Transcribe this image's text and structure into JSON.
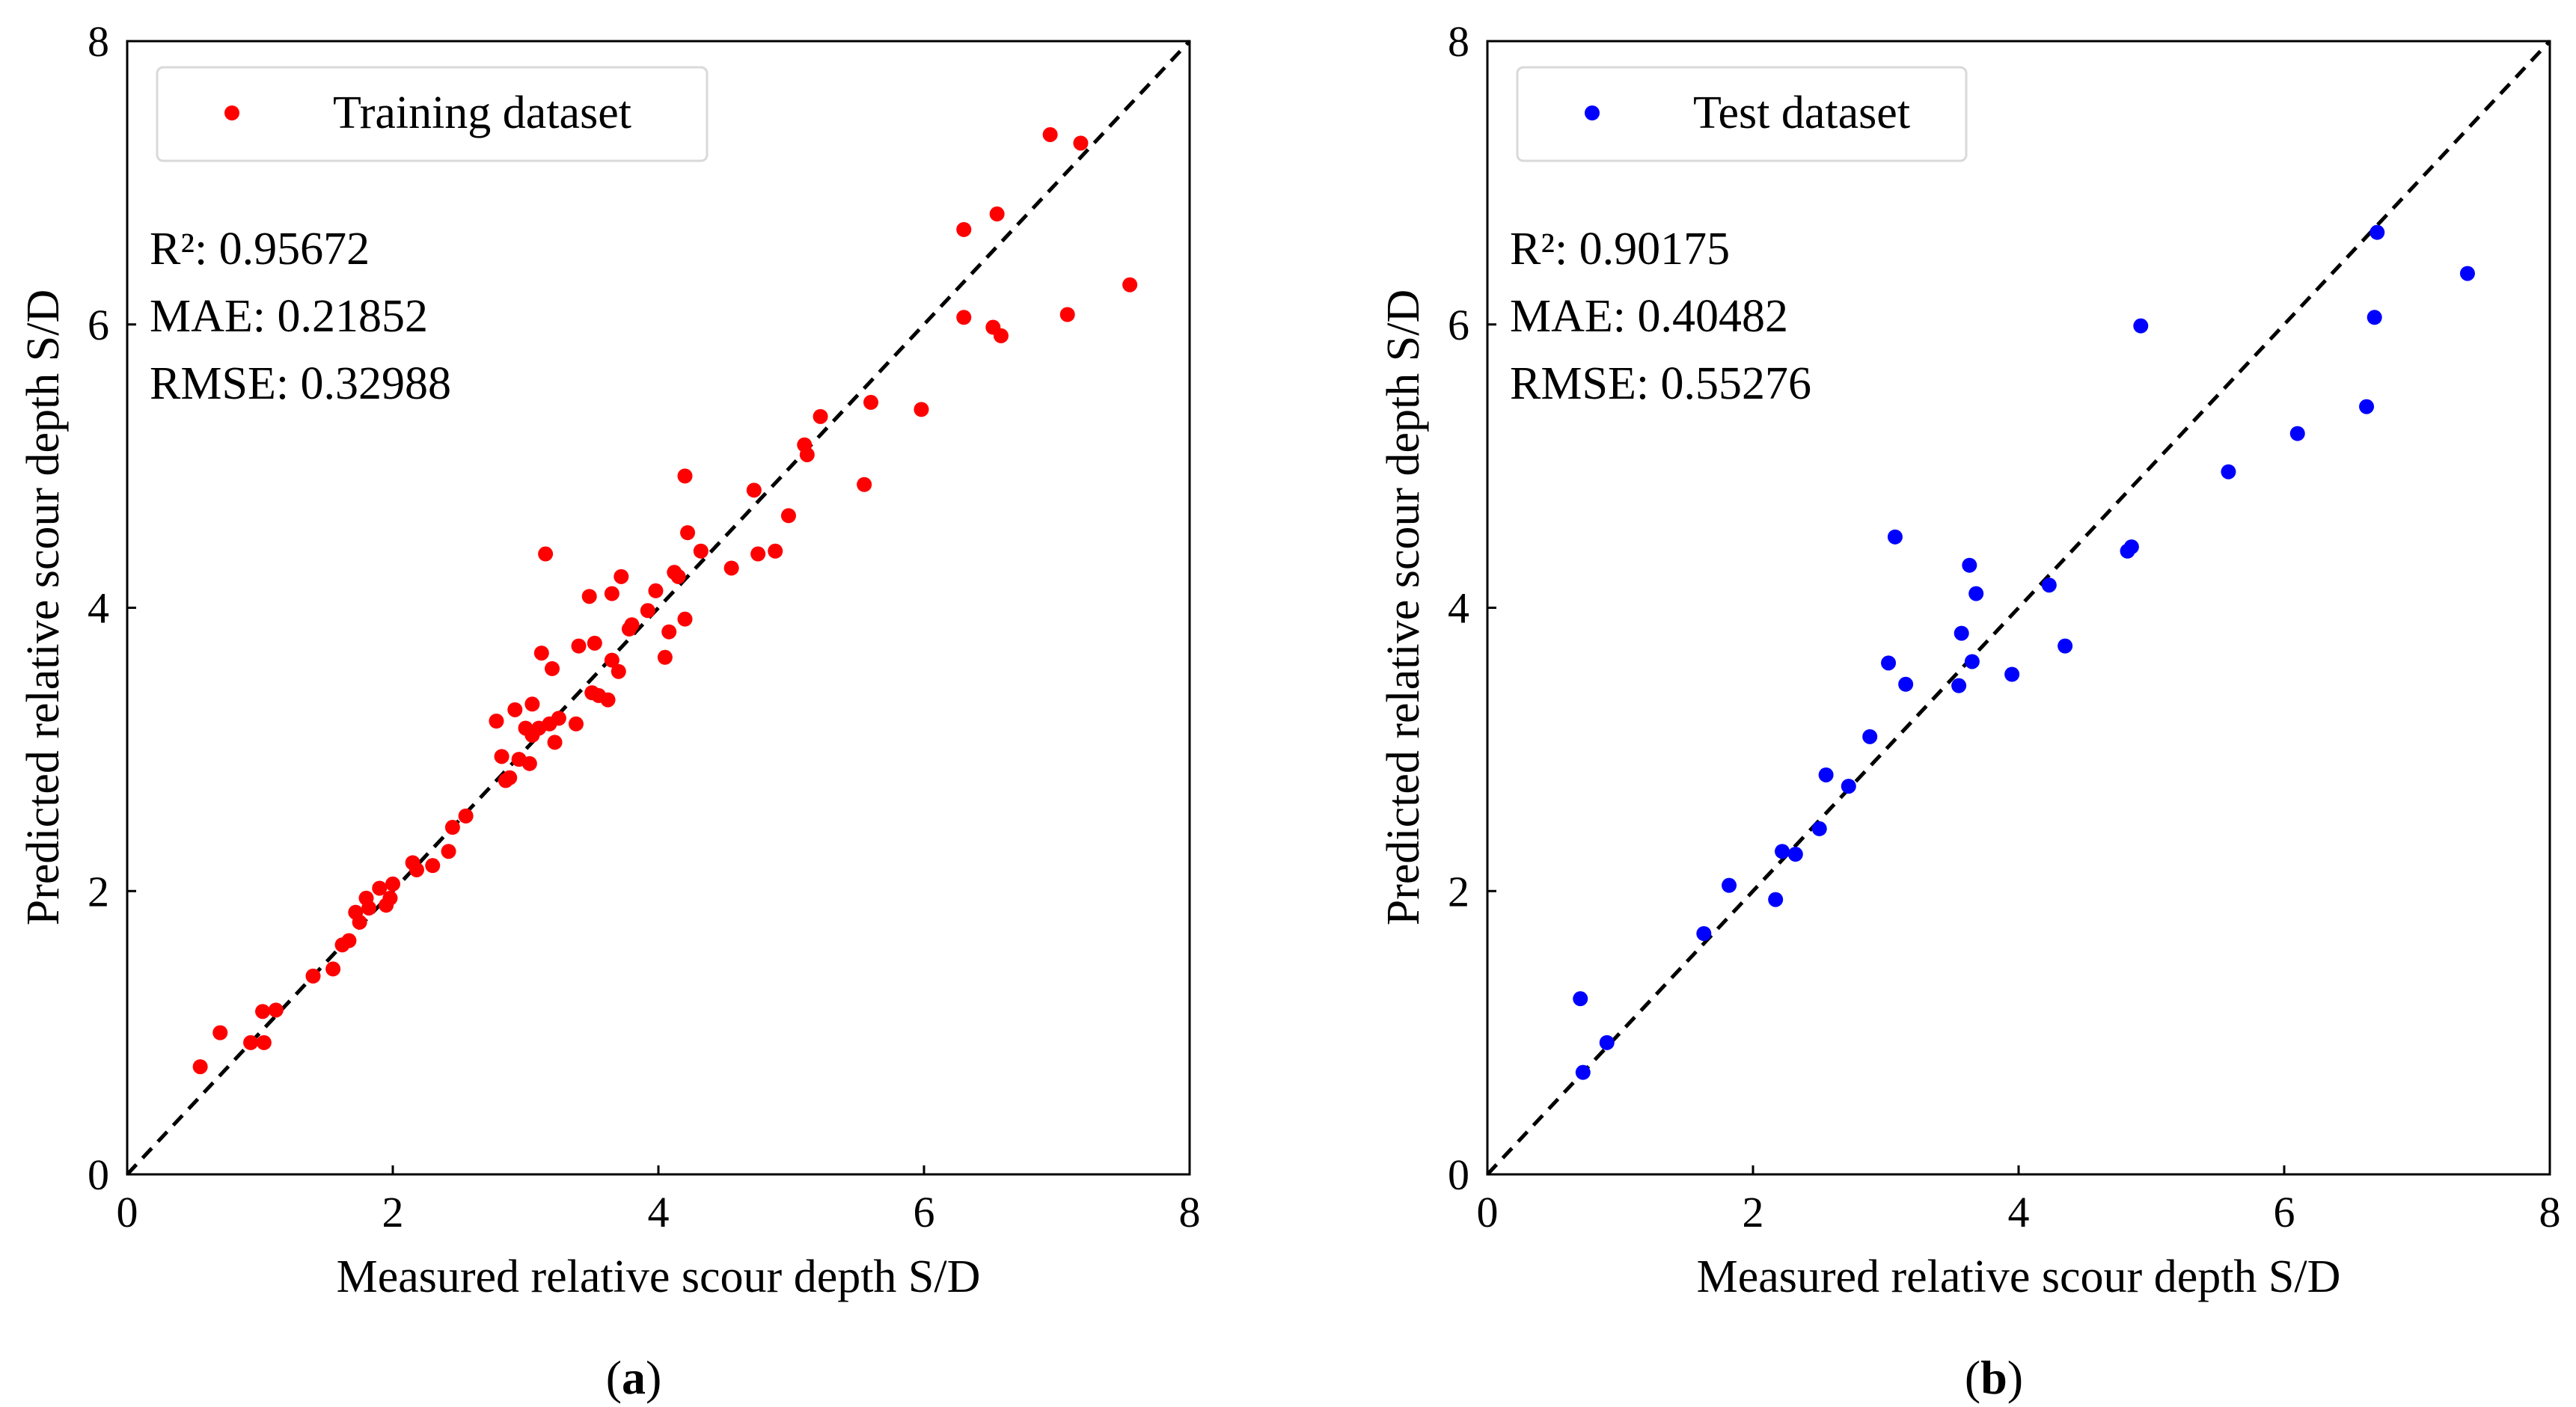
{
  "colors": {
    "training": "#ff0000",
    "test": "#0000ff",
    "axis": "#000000"
  },
  "chart_data": [
    {
      "type": "scatter",
      "panel_label": "(a)",
      "panel_letter": "a",
      "xlabel": "Measured relative scour depth S/D",
      "ylabel": "Predicted relative scour depth S/D",
      "xlim": [
        0,
        8
      ],
      "ylim": [
        0,
        8
      ],
      "xticks": [
        0,
        2,
        4,
        6,
        8
      ],
      "yticks": [
        0,
        2,
        4,
        6,
        8
      ],
      "grid": false,
      "reference_line": "y = x (dashed)",
      "legend": {
        "label": "Training dataset",
        "position": "top-left"
      },
      "metrics": [
        "R²: 0.95672",
        "MAE: 0.21852",
        "RMSE: 0.32988"
      ],
      "series": [
        {
          "name": "Training dataset",
          "color": "#ff0000",
          "points": [
            [
              0.55,
              0.76
            ],
            [
              0.7,
              1.0
            ],
            [
              0.93,
              0.93
            ],
            [
              1.03,
              0.93
            ],
            [
              1.02,
              1.15
            ],
            [
              1.12,
              1.16
            ],
            [
              1.4,
              1.4
            ],
            [
              1.55,
              1.45
            ],
            [
              1.62,
              1.62
            ],
            [
              1.67,
              1.65
            ],
            [
              1.72,
              1.85
            ],
            [
              1.75,
              1.78
            ],
            [
              1.8,
              1.95
            ],
            [
              1.82,
              1.88
            ],
            [
              1.9,
              2.02
            ],
            [
              1.95,
              1.9
            ],
            [
              1.98,
              1.95
            ],
            [
              2.0,
              2.05
            ],
            [
              2.15,
              2.2
            ],
            [
              2.18,
              2.15
            ],
            [
              2.3,
              2.18
            ],
            [
              2.42,
              2.28
            ],
            [
              2.45,
              2.45
            ],
            [
              2.55,
              2.53
            ],
            [
              2.78,
              3.2
            ],
            [
              2.82,
              2.95
            ],
            [
              2.85,
              2.78
            ],
            [
              2.88,
              2.8
            ],
            [
              2.92,
              3.28
            ],
            [
              2.95,
              2.93
            ],
            [
              3.0,
              3.15
            ],
            [
              3.03,
              2.9
            ],
            [
              3.05,
              3.32
            ],
            [
              3.05,
              3.1
            ],
            [
              3.1,
              3.15
            ],
            [
              3.12,
              3.68
            ],
            [
              3.15,
              4.38
            ],
            [
              3.18,
              3.18
            ],
            [
              3.2,
              3.57
            ],
            [
              3.22,
              3.05
            ],
            [
              3.25,
              3.22
            ],
            [
              3.38,
              3.18
            ],
            [
              3.4,
              3.73
            ],
            [
              3.48,
              4.08
            ],
            [
              3.5,
              3.4
            ],
            [
              3.52,
              3.75
            ],
            [
              3.55,
              3.38
            ],
            [
              3.62,
              3.35
            ],
            [
              3.65,
              4.1
            ],
            [
              3.65,
              3.63
            ],
            [
              3.7,
              3.55
            ],
            [
              3.72,
              4.22
            ],
            [
              3.78,
              3.85
            ],
            [
              3.8,
              3.88
            ],
            [
              3.92,
              3.98
            ],
            [
              3.98,
              4.12
            ],
            [
              4.05,
              3.65
            ],
            [
              4.08,
              3.83
            ],
            [
              4.12,
              4.25
            ],
            [
              4.15,
              4.22
            ],
            [
              4.2,
              3.92
            ],
            [
              4.2,
              4.93
            ],
            [
              4.22,
              4.53
            ],
            [
              4.32,
              4.4
            ],
            [
              4.55,
              4.28
            ],
            [
              4.72,
              4.83
            ],
            [
              4.75,
              4.38
            ],
            [
              4.88,
              4.4
            ],
            [
              4.98,
              4.65
            ],
            [
              5.1,
              5.15
            ],
            [
              5.12,
              5.08
            ],
            [
              5.22,
              5.35
            ],
            [
              5.55,
              4.87
            ],
            [
              5.6,
              5.45
            ],
            [
              5.98,
              5.4
            ],
            [
              6.3,
              6.05
            ],
            [
              6.3,
              6.67
            ],
            [
              6.52,
              5.98
            ],
            [
              6.55,
              6.78
            ],
            [
              6.58,
              5.92
            ],
            [
              7.08,
              6.07
            ],
            [
              6.95,
              7.34
            ],
            [
              7.18,
              7.28
            ],
            [
              7.55,
              6.28
            ]
          ]
        }
      ]
    },
    {
      "type": "scatter",
      "panel_label": "(b)",
      "panel_letter": "b",
      "xlabel": "Measured relative scour depth S/D",
      "ylabel": "Predicted relative scour depth S/D",
      "xlim": [
        0,
        8
      ],
      "ylim": [
        0,
        8
      ],
      "xticks": [
        0,
        2,
        4,
        6,
        8
      ],
      "yticks": [
        0,
        2,
        4,
        6,
        8
      ],
      "grid": false,
      "reference_line": "y = x (dashed)",
      "legend": {
        "label": "Test dataset",
        "position": "top-left"
      },
      "metrics": [
        "R²: 0.90175",
        "MAE: 0.40482",
        "RMSE: 0.55276"
      ],
      "series": [
        {
          "name": "Test dataset",
          "color": "#0000ff",
          "points": [
            [
              0.7,
              1.24
            ],
            [
              0.72,
              0.72
            ],
            [
              0.9,
              0.93
            ],
            [
              1.63,
              1.7
            ],
            [
              1.82,
              2.04
            ],
            [
              2.17,
              1.94
            ],
            [
              2.22,
              2.28
            ],
            [
              2.32,
              2.26
            ],
            [
              2.5,
              2.44
            ],
            [
              2.55,
              2.82
            ],
            [
              2.72,
              2.74
            ],
            [
              2.88,
              3.09
            ],
            [
              3.02,
              3.61
            ],
            [
              3.07,
              4.5
            ],
            [
              3.15,
              3.46
            ],
            [
              3.55,
              3.45
            ],
            [
              3.57,
              3.82
            ],
            [
              3.63,
              4.3
            ],
            [
              3.65,
              3.62
            ],
            [
              3.68,
              4.1
            ],
            [
              3.95,
              3.53
            ],
            [
              4.23,
              4.16
            ],
            [
              4.35,
              3.73
            ],
            [
              4.82,
              4.4
            ],
            [
              4.85,
              4.43
            ],
            [
              4.92,
              5.99
            ],
            [
              5.58,
              4.96
            ],
            [
              6.1,
              5.23
            ],
            [
              6.62,
              5.42
            ],
            [
              6.68,
              6.05
            ],
            [
              6.7,
              6.65
            ],
            [
              7.38,
              6.36
            ]
          ]
        }
      ]
    }
  ]
}
